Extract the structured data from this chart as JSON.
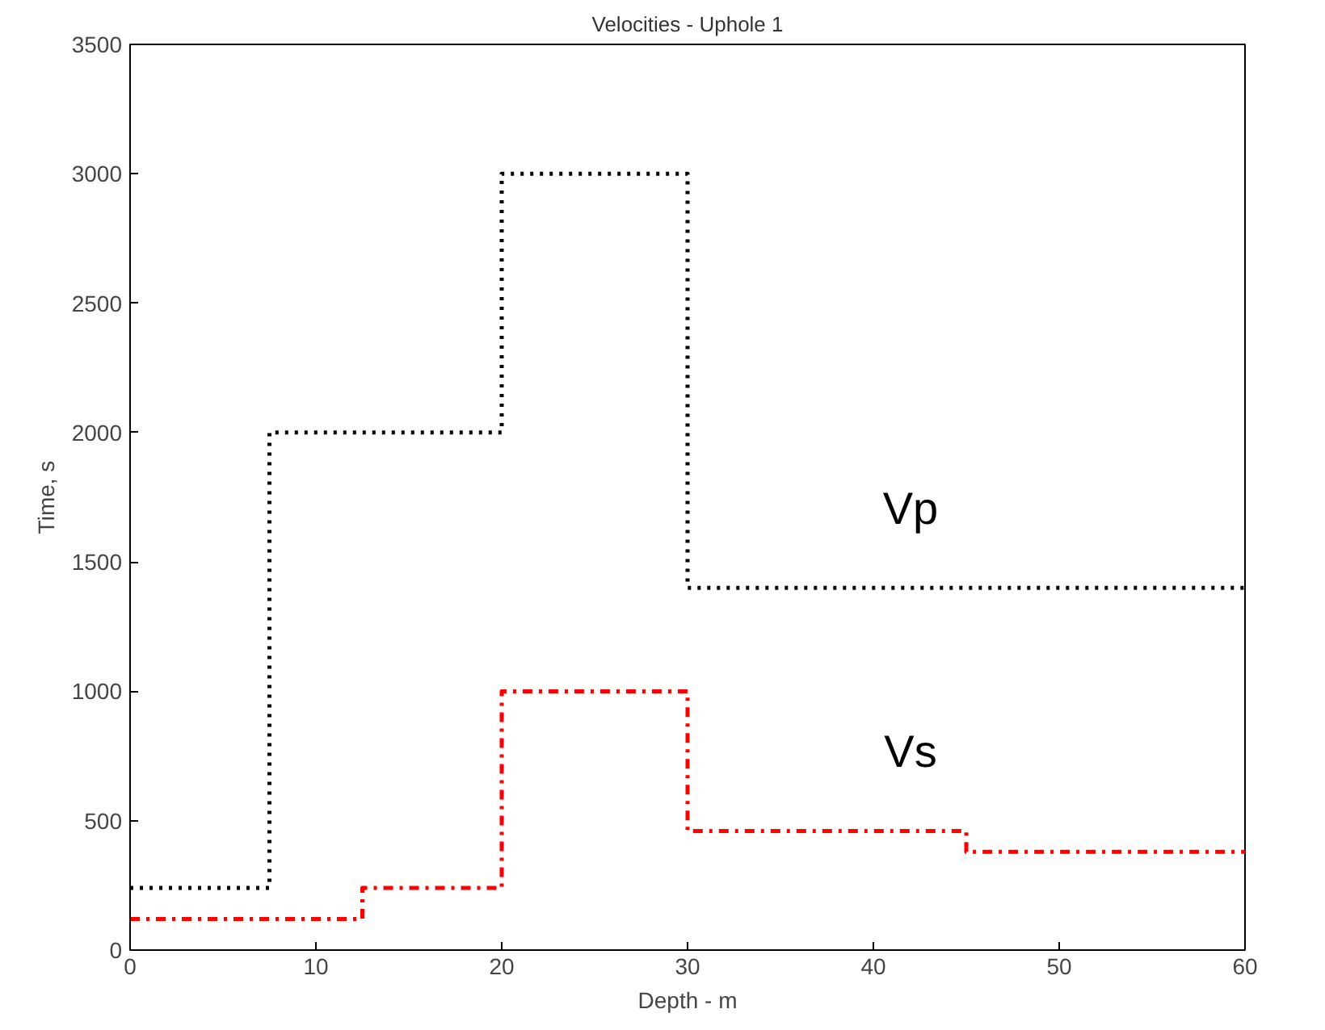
{
  "chart_data": {
    "type": "step",
    "title": "Velocities - Uphole 1",
    "xlabel": "Depth - m",
    "ylabel": "Time, s",
    "xlim": [
      0,
      60
    ],
    "xticks": [
      0,
      10,
      20,
      30,
      40,
      50,
      60
    ],
    "ylim": [
      0,
      3500
    ],
    "yticks": [
      0,
      500,
      1000,
      1500,
      2000,
      2500,
      3000,
      3500
    ],
    "grid": false,
    "series": [
      {
        "name": "Vp",
        "color": "#000000",
        "line_style": "dotted",
        "x": [
          0,
          7.5,
          20,
          30,
          60
        ],
        "values": [
          240,
          2000,
          3000,
          1400,
          1400
        ]
      },
      {
        "name": "Vs",
        "color": "#ff0000",
        "line_style": "dashdot",
        "x": [
          0,
          12.5,
          20,
          30,
          45,
          60
        ],
        "values": [
          120,
          240,
          1000,
          460,
          380,
          380
        ]
      }
    ]
  }
}
